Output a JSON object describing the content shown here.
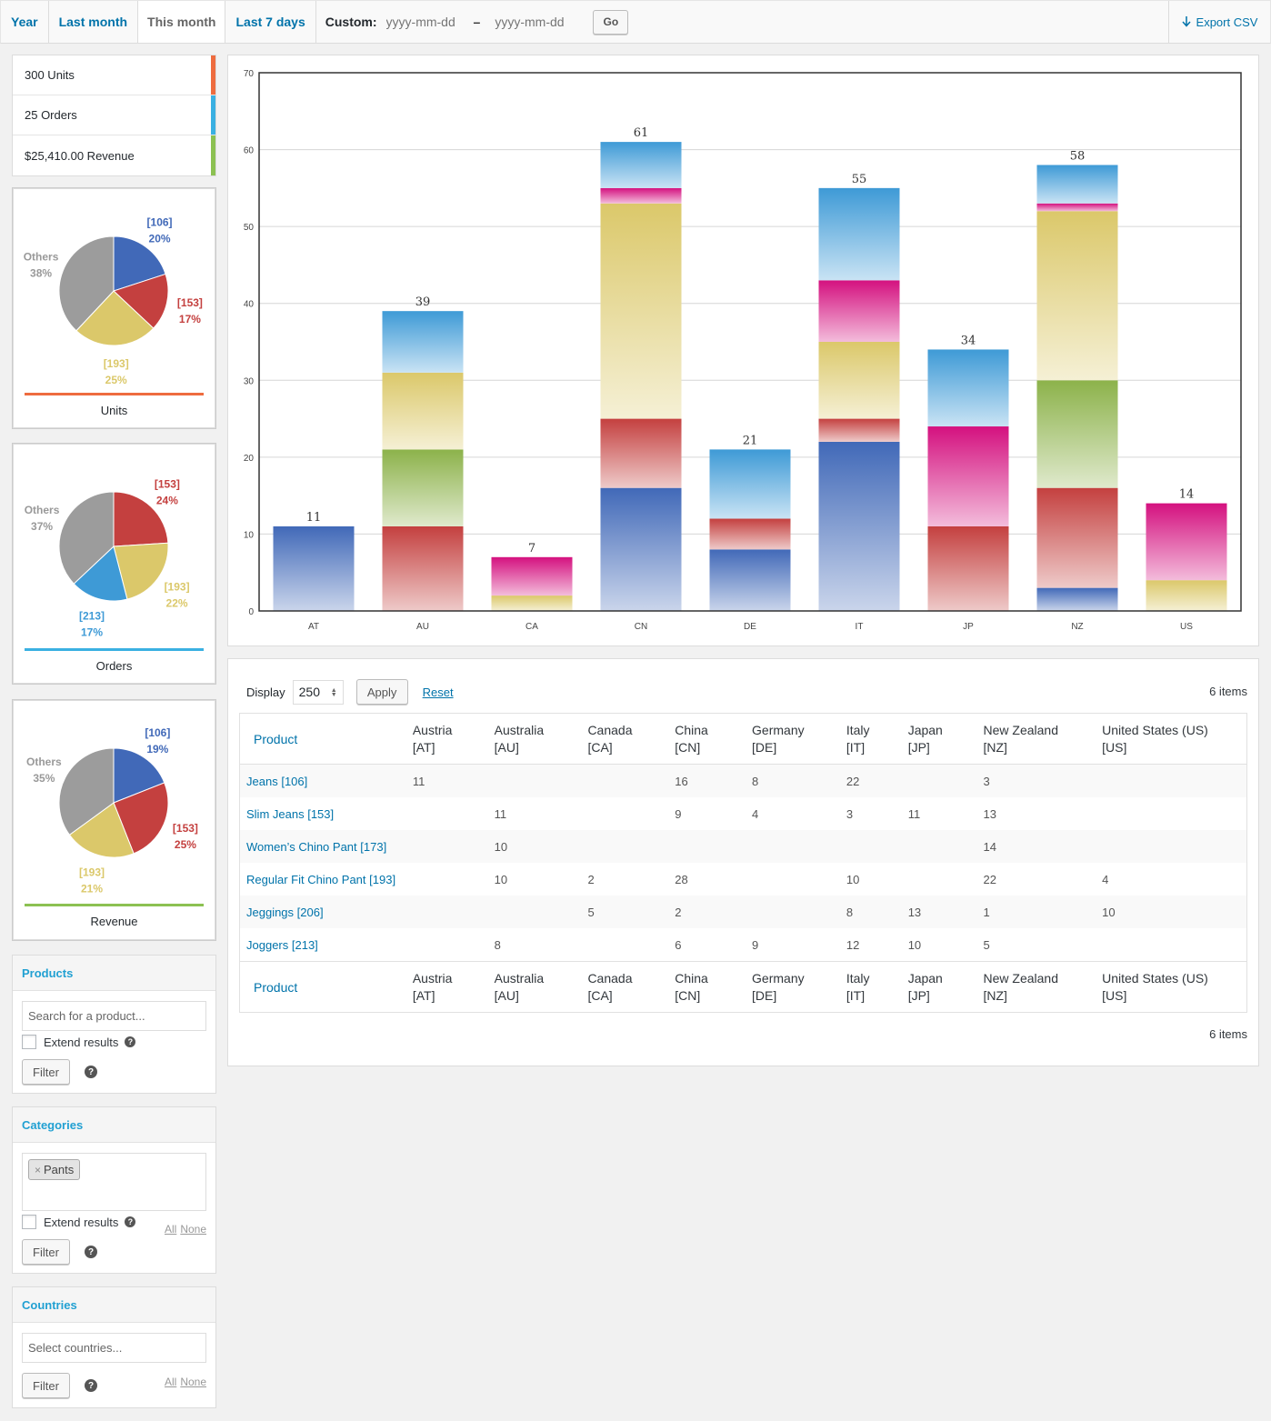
{
  "ranges": {
    "tabs": [
      {
        "label": "Year",
        "active": false
      },
      {
        "label": "Last month",
        "active": false
      },
      {
        "label": "This month",
        "active": true
      },
      {
        "label": "Last 7 days",
        "active": false
      }
    ],
    "custom_label": "Custom:",
    "start_placeholder": "yyyy-mm-dd",
    "dash": "–",
    "end_placeholder": "yyyy-mm-dd",
    "go_label": "Go"
  },
  "export": {
    "icon": "arrow-down-icon",
    "label": "Export CSV"
  },
  "summary": [
    {
      "label": "300 Units",
      "color": "#ee6c3f"
    },
    {
      "label": "25 Orders",
      "color": "#3ab0e2"
    },
    {
      "label": "$25,410.00 Revenue",
      "color": "#8cc152"
    }
  ],
  "pies": [
    {
      "title": "Units",
      "line_color": "#ee6c3f",
      "slices": [
        {
          "id": "[106]",
          "pct": "20%",
          "value": 20,
          "color": "#4169b8"
        },
        {
          "id": "[153]",
          "pct": "17%",
          "value": 17,
          "color": "#c4403f"
        },
        {
          "id": "[193]",
          "pct": "25%",
          "value": 25,
          "color": "#dbc86a"
        },
        {
          "id": "Others",
          "pct": "38%",
          "value": 38,
          "color": "#9c9c9c"
        }
      ]
    },
    {
      "title": "Orders",
      "line_color": "#3ab0e2",
      "slices": [
        {
          "id": "[153]",
          "pct": "24%",
          "value": 24,
          "color": "#c4403f"
        },
        {
          "id": "[193]",
          "pct": "22%",
          "value": 22,
          "color": "#dbc86a"
        },
        {
          "id": "[213]",
          "pct": "17%",
          "value": 17,
          "color": "#3e9ad6"
        },
        {
          "id": "Others",
          "pct": "37%",
          "value": 37,
          "color": "#9c9c9c"
        }
      ]
    },
    {
      "title": "Revenue",
      "line_color": "#8cc152",
      "slices": [
        {
          "id": "[106]",
          "pct": "19%",
          "value": 19,
          "color": "#4169b8"
        },
        {
          "id": "[153]",
          "pct": "25%",
          "value": 25,
          "color": "#c4403f"
        },
        {
          "id": "[193]",
          "pct": "21%",
          "value": 21,
          "color": "#dbc86a"
        },
        {
          "id": "Others",
          "pct": "35%",
          "value": 35,
          "color": "#9c9c9c"
        }
      ]
    }
  ],
  "products_widget": {
    "title": "Products",
    "search_placeholder": "Search for a product...",
    "extend_label": "Extend results",
    "filter_label": "Filter"
  },
  "categories_widget": {
    "title": "Categories",
    "chip": "Pants",
    "chip_remove": "×",
    "extend_label": "Extend results",
    "all_label": "All",
    "none_label": "None",
    "filter_label": "Filter"
  },
  "countries_widget": {
    "title": "Countries",
    "placeholder": "Select countries...",
    "all_label": "All",
    "none_label": "None",
    "filter_label": "Filter"
  },
  "chart_data": {
    "type": "bar",
    "stacked": true,
    "categories": [
      "AT",
      "AU",
      "CA",
      "CN",
      "DE",
      "IT",
      "JP",
      "NZ",
      "US"
    ],
    "series": [
      {
        "color": "#4169b8",
        "values": [
          11,
          0,
          0,
          16,
          8,
          22,
          0,
          3,
          0
        ]
      },
      {
        "color": "#c4403f",
        "values": [
          0,
          11,
          0,
          9,
          4,
          3,
          11,
          13,
          0
        ]
      },
      {
        "color": "#8cb24a",
        "values": [
          0,
          10,
          0,
          0,
          0,
          0,
          0,
          14,
          0
        ]
      },
      {
        "color": "#dbc86a",
        "values": [
          0,
          10,
          2,
          28,
          0,
          10,
          0,
          22,
          4
        ]
      },
      {
        "color": "#d4117f",
        "values": [
          0,
          0,
          5,
          2,
          0,
          8,
          13,
          1,
          10
        ]
      },
      {
        "color": "#3e9ad6",
        "values": [
          0,
          8,
          0,
          6,
          9,
          12,
          10,
          5,
          0
        ]
      }
    ],
    "totals": [
      11,
      39,
      7,
      61,
      21,
      55,
      34,
      58,
      14
    ],
    "ylim": [
      0,
      70
    ],
    "yticks": [
      0,
      10,
      20,
      30,
      40,
      50,
      60,
      70
    ],
    "grid": true
  },
  "table": {
    "display_label": "Display",
    "per_page": "250",
    "apply_label": "Apply",
    "reset_label": "Reset",
    "items_label": "6 items",
    "columns": [
      {
        "name": "Product",
        "code": ""
      },
      {
        "name": "Austria",
        "code": "[AT]"
      },
      {
        "name": "Australia",
        "code": "[AU]"
      },
      {
        "name": "Canada",
        "code": "[CA]"
      },
      {
        "name": "China",
        "code": "[CN]"
      },
      {
        "name": "Germany",
        "code": "[DE]"
      },
      {
        "name": "Italy",
        "code": "[IT]"
      },
      {
        "name": "Japan",
        "code": "[JP]"
      },
      {
        "name": "New Zealand",
        "code": "[NZ]"
      },
      {
        "name": "United States (US)",
        "code": "[US]"
      }
    ],
    "rows": [
      {
        "name": "Jeans",
        "id": "[106]",
        "values": [
          "11",
          "",
          "",
          "16",
          "8",
          "22",
          "",
          "3",
          ""
        ]
      },
      {
        "name": "Slim Jeans",
        "id": "[153]",
        "values": [
          "",
          "11",
          "",
          "9",
          "4",
          "3",
          "11",
          "13",
          ""
        ]
      },
      {
        "name": "Women’s Chino Pant",
        "id": "[173]",
        "values": [
          "",
          "10",
          "",
          "",
          "",
          "",
          "",
          "14",
          ""
        ]
      },
      {
        "name": "Regular Fit Chino Pant",
        "id": "[193]",
        "values": [
          "",
          "10",
          "2",
          "28",
          "",
          "10",
          "",
          "22",
          "4"
        ]
      },
      {
        "name": "Jeggings",
        "id": "[206]",
        "values": [
          "",
          "",
          "5",
          "2",
          "",
          "8",
          "13",
          "1",
          "10"
        ]
      },
      {
        "name": "Joggers",
        "id": "[213]",
        "values": [
          "",
          "8",
          "",
          "6",
          "9",
          "12",
          "10",
          "5",
          ""
        ]
      }
    ]
  }
}
